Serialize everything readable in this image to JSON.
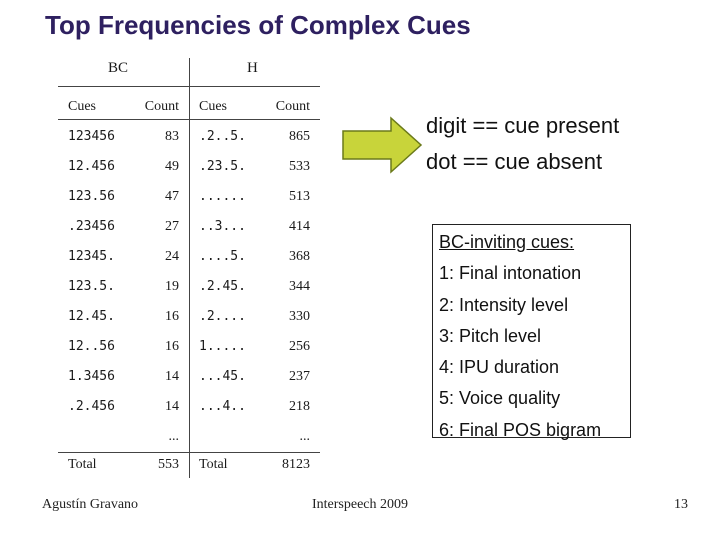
{
  "title": "Top Frequencies of Complex Cues",
  "table": {
    "groups": [
      "BC",
      "H"
    ],
    "columns": [
      "Cues",
      "Count",
      "Cues",
      "Count"
    ],
    "rows": [
      [
        "123456",
        "83",
        ".2..5.",
        "865"
      ],
      [
        "12.456",
        "49",
        ".23.5.",
        "533"
      ],
      [
        "123.56",
        "47",
        "......",
        "513"
      ],
      [
        ".23456",
        "27",
        "..3...",
        "414"
      ],
      [
        "12345.",
        "24",
        "....5.",
        "368"
      ],
      [
        "123.5.",
        "19",
        ".2.45.",
        "344"
      ],
      [
        "12.45.",
        "16",
        ".2....",
        "330"
      ],
      [
        "12..56",
        "16",
        "1.....",
        "256"
      ],
      [
        "1.3456",
        "14",
        "...45.",
        "237"
      ],
      [
        ".2.456",
        "14",
        "...4..",
        "218"
      ]
    ],
    "ellipsis": "...",
    "total": [
      "Total",
      "553",
      "Total",
      "8123"
    ]
  },
  "legend": {
    "line1": "digit == cue present",
    "line2": "dot == cue absent"
  },
  "bc_box": {
    "header": "BC-inviting cues:",
    "items": [
      "1: Final intonation",
      "2: Intensity level",
      "3: Pitch level",
      "4: IPU duration",
      "5: Voice quality",
      "6: Final POS bigram"
    ]
  },
  "footer": {
    "author": "Agustín Gravano",
    "venue": "Interspeech 2009",
    "page": "13"
  },
  "colors": {
    "title": "#2e2060",
    "arrow_fill": "#c8d43a",
    "arrow_stroke": "#6b7a1a"
  }
}
